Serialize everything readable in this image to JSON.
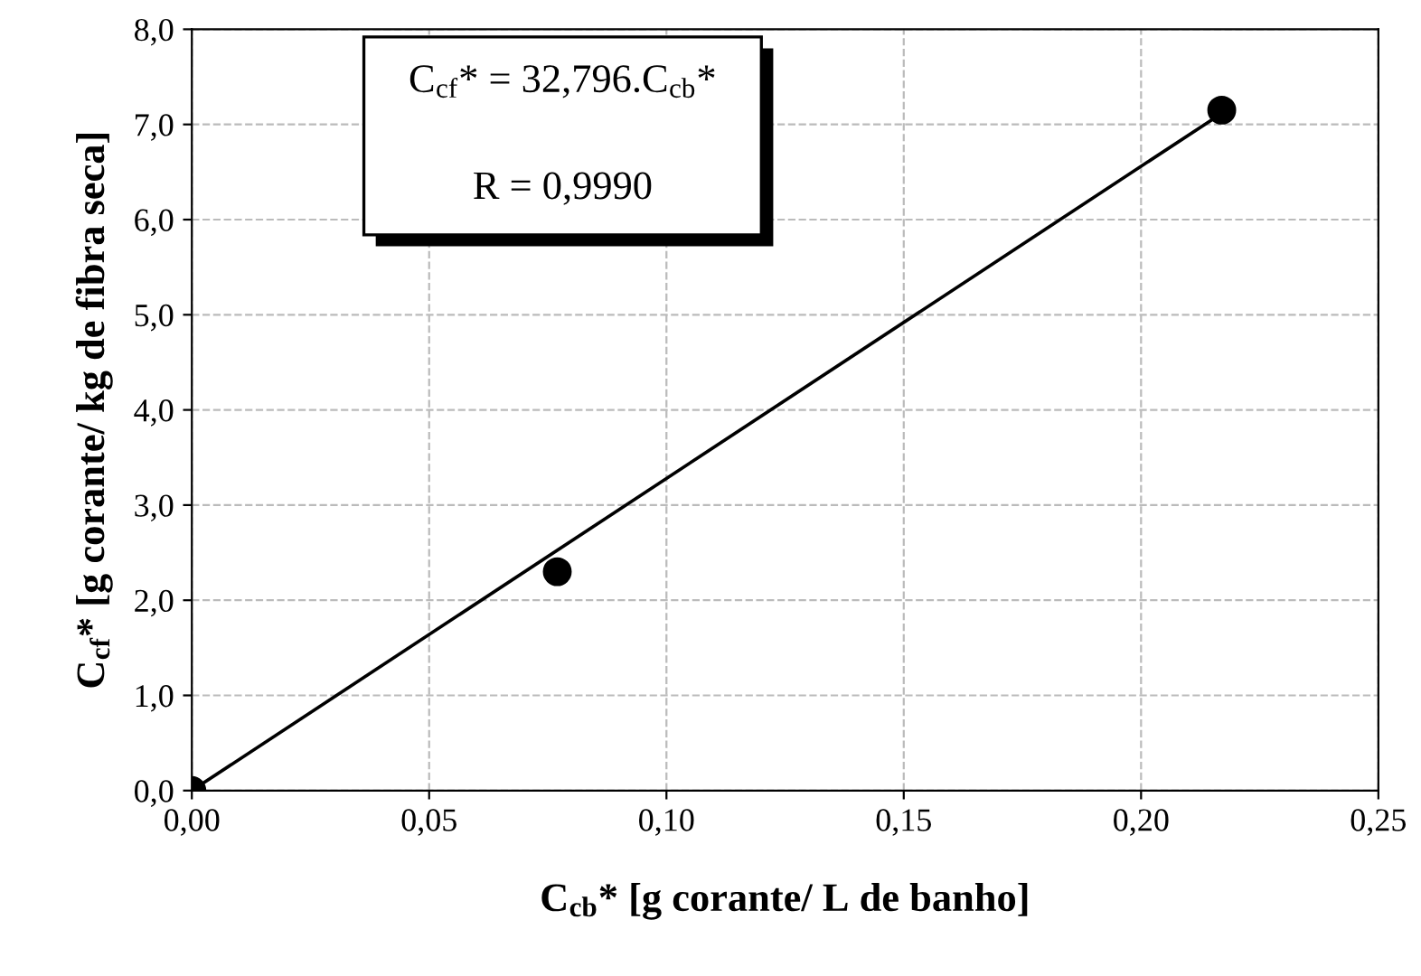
{
  "chart_data": {
    "type": "scatter",
    "xlabel": "C$_{cb}$* [g corante/ L de banho]",
    "ylabel": "C$_{cf}$* [g corante/ kg de fibra seca]",
    "annotations": [
      "C$_{cf}$* = 32,796.C$_{cb}$*",
      "R = 0,9990"
    ],
    "series": [
      {
        "color": "#000000",
        "marker": "circle",
        "x": [
          0.0,
          0.077,
          0.217
        ],
        "values": [
          0.0,
          2.3,
          7.15
        ]
      },
      {
        "type": "line",
        "color": "#000000",
        "marker": "none",
        "line_style": "solid",
        "x": [
          0.0,
          0.218
        ],
        "values": [
          0.0,
          7.15
        ]
      }
    ],
    "xlim": [
      0,
      0.25
    ],
    "ylim": [
      0,
      8
    ],
    "xticks": [
      {
        "value": 0,
        "label": "0,00"
      },
      {
        "value": 0.05,
        "label": "0,05"
      },
      {
        "value": 0.1,
        "label": "0,10"
      },
      {
        "value": 0.15,
        "label": "0,15"
      },
      {
        "value": 0.2,
        "label": "0,20"
      },
      {
        "value": 0.25,
        "label": "0,25"
      }
    ],
    "yticks": [
      {
        "value": 0,
        "label": "0,0"
      },
      {
        "value": 1,
        "label": "1,0"
      },
      {
        "value": 2,
        "label": "2,0"
      },
      {
        "value": 3,
        "label": "3,0"
      },
      {
        "value": 4,
        "label": "4,0"
      },
      {
        "value": 5,
        "label": "5,0"
      },
      {
        "value": 6,
        "label": "6,0"
      },
      {
        "value": 7,
        "label": "7,0"
      },
      {
        "value": 8,
        "label": "8,0"
      }
    ],
    "grid": true,
    "legend": false
  }
}
